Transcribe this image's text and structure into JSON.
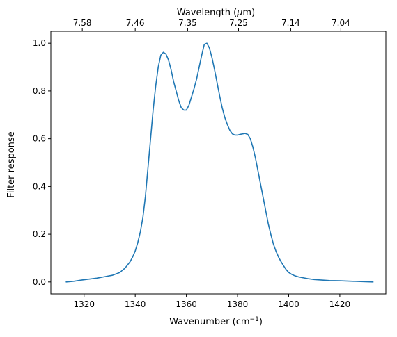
{
  "chart_data": {
    "type": "line",
    "xlabel": "Wavenumber (cm",
    "xlabel_sup": "−1",
    "xlabel_suffix": ")",
    "ylabel": "Filter response",
    "top_axis_label_prefix": "Wavelength (",
    "top_axis_label_mu": "μ",
    "top_axis_label_suffix": "m)",
    "xlim": [
      1307,
      1438
    ],
    "ylim": [
      -0.05,
      1.05
    ],
    "x_ticks": [
      1320,
      1340,
      1360,
      1380,
      1400,
      1420
    ],
    "y_ticks": [
      0.0,
      0.2,
      0.4,
      0.6,
      0.8,
      1.0
    ],
    "y_tick_labels": [
      "0.0",
      "0.2",
      "0.4",
      "0.6",
      "0.8",
      "1.0"
    ],
    "top_ticks": [
      {
        "label": "7.58",
        "x": 1319.3
      },
      {
        "label": "7.46",
        "x": 1340.0
      },
      {
        "label": "7.35",
        "x": 1360.5
      },
      {
        "label": "7.25",
        "x": 1380.4
      },
      {
        "label": "7.14",
        "x": 1400.8
      },
      {
        "label": "7.04",
        "x": 1420.4
      }
    ],
    "grid": false,
    "series": [
      {
        "color": "#1f77b4",
        "x": [
          1313,
          1316,
          1319,
          1322,
          1325,
          1328,
          1331,
          1334,
          1336,
          1338,
          1339,
          1340,
          1341,
          1342,
          1343,
          1344,
          1345,
          1346,
          1347,
          1348,
          1349,
          1350,
          1351,
          1352,
          1353,
          1354,
          1355,
          1356,
          1357,
          1358,
          1359,
          1360,
          1361,
          1362,
          1363,
          1364,
          1365,
          1366,
          1367,
          1368,
          1369,
          1370,
          1371,
          1372,
          1373,
          1374,
          1375,
          1376,
          1377,
          1378,
          1379,
          1380,
          1381,
          1382,
          1383,
          1384,
          1385,
          1386,
          1387,
          1388,
          1389,
          1390,
          1391,
          1392,
          1393,
          1394,
          1395,
          1396,
          1397,
          1398,
          1399,
          1400,
          1401,
          1402,
          1403,
          1404,
          1406,
          1408,
          1410,
          1413,
          1416,
          1420,
          1425,
          1430,
          1433
        ],
        "y": [
          0.0,
          0.003,
          0.008,
          0.012,
          0.016,
          0.022,
          0.028,
          0.04,
          0.058,
          0.085,
          0.105,
          0.13,
          0.165,
          0.21,
          0.27,
          0.36,
          0.48,
          0.6,
          0.72,
          0.82,
          0.9,
          0.95,
          0.962,
          0.955,
          0.93,
          0.89,
          0.84,
          0.8,
          0.76,
          0.73,
          0.72,
          0.72,
          0.74,
          0.775,
          0.81,
          0.85,
          0.9,
          0.95,
          0.995,
          1.0,
          0.98,
          0.94,
          0.89,
          0.835,
          0.78,
          0.73,
          0.69,
          0.66,
          0.635,
          0.62,
          0.615,
          0.615,
          0.618,
          0.62,
          0.622,
          0.618,
          0.6,
          0.565,
          0.52,
          0.465,
          0.41,
          0.355,
          0.3,
          0.245,
          0.2,
          0.16,
          0.13,
          0.105,
          0.085,
          0.068,
          0.052,
          0.04,
          0.033,
          0.028,
          0.024,
          0.021,
          0.017,
          0.013,
          0.01,
          0.008,
          0.006,
          0.005,
          0.003,
          0.001,
          0.0
        ]
      }
    ]
  }
}
